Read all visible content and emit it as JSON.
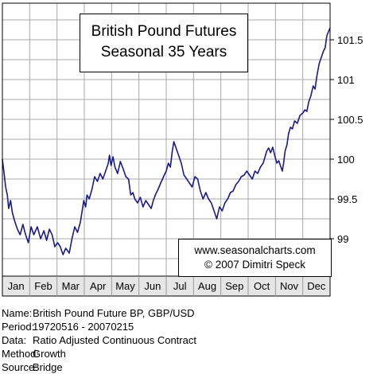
{
  "chart_data": {
    "type": "line",
    "title_lines": [
      "British Pound Futures",
      "Seasonal 35 Years"
    ],
    "credit_lines": [
      "www.seasonalcharts.com",
      "© 2007  Dimitri Speck"
    ],
    "categories": [
      "Jan",
      "Feb",
      "Mar",
      "Apr",
      "May",
      "Jun",
      "Jul",
      "Aug",
      "Sep",
      "Oct",
      "Nov",
      "Dec"
    ],
    "yticks": [
      99,
      99.5,
      100,
      100.5,
      101,
      101.5
    ],
    "ytick_labels": [
      "99",
      "99.5",
      "100",
      "100.5",
      "101",
      "101.5"
    ],
    "ylim": [
      98.6,
      101.8
    ],
    "y_axis_side": "right",
    "grid": true,
    "series": [
      {
        "color": "#1a1a8c",
        "points": [
          [
            0.0,
            100.0
          ],
          [
            0.07,
            99.8
          ],
          [
            0.12,
            99.65
          ],
          [
            0.18,
            99.55
          ],
          [
            0.23,
            99.38
          ],
          [
            0.3,
            99.48
          ],
          [
            0.37,
            99.32
          ],
          [
            0.45,
            99.22
          ],
          [
            0.55,
            99.12
          ],
          [
            0.65,
            99.05
          ],
          [
            0.75,
            99.18
          ],
          [
            0.85,
            99.05
          ],
          [
            0.95,
            98.95
          ],
          [
            1.05,
            99.15
          ],
          [
            1.15,
            99.05
          ],
          [
            1.28,
            99.15
          ],
          [
            1.4,
            99.0
          ],
          [
            1.52,
            99.1
          ],
          [
            1.62,
            98.98
          ],
          [
            1.72,
            99.12
          ],
          [
            1.82,
            99.05
          ],
          [
            1.92,
            98.9
          ],
          [
            2.02,
            98.95
          ],
          [
            2.12,
            98.9
          ],
          [
            2.22,
            98.8
          ],
          [
            2.32,
            98.88
          ],
          [
            2.45,
            98.82
          ],
          [
            2.55,
            99.0
          ],
          [
            2.65,
            99.15
          ],
          [
            2.75,
            99.08
          ],
          [
            2.85,
            99.2
          ],
          [
            2.92,
            99.35
          ],
          [
            2.98,
            99.48
          ],
          [
            3.05,
            99.4
          ],
          [
            3.1,
            99.55
          ],
          [
            3.18,
            99.5
          ],
          [
            3.28,
            99.62
          ],
          [
            3.38,
            99.78
          ],
          [
            3.48,
            99.72
          ],
          [
            3.58,
            99.82
          ],
          [
            3.68,
            99.75
          ],
          [
            3.78,
            99.85
          ],
          [
            3.88,
            99.95
          ],
          [
            3.92,
            100.05
          ],
          [
            3.98,
            99.92
          ],
          [
            4.05,
            100.03
          ],
          [
            4.12,
            99.9
          ],
          [
            4.22,
            99.82
          ],
          [
            4.32,
            99.97
          ],
          [
            4.42,
            99.88
          ],
          [
            4.52,
            99.78
          ],
          [
            4.62,
            99.75
          ],
          [
            4.7,
            99.55
          ],
          [
            4.78,
            99.58
          ],
          [
            4.85,
            99.5
          ],
          [
            4.95,
            99.45
          ],
          [
            5.05,
            99.52
          ],
          [
            5.15,
            99.4
          ],
          [
            5.25,
            99.48
          ],
          [
            5.35,
            99.43
          ],
          [
            5.45,
            99.38
          ],
          [
            5.52,
            99.47
          ],
          [
            5.6,
            99.55
          ],
          [
            5.7,
            99.62
          ],
          [
            5.8,
            99.7
          ],
          [
            5.9,
            99.78
          ],
          [
            6.0,
            99.85
          ],
          [
            6.08,
            99.95
          ],
          [
            6.15,
            99.9
          ],
          [
            6.22,
            100.1
          ],
          [
            6.28,
            100.22
          ],
          [
            6.35,
            100.15
          ],
          [
            6.45,
            100.05
          ],
          [
            6.55,
            99.95
          ],
          [
            6.65,
            99.8
          ],
          [
            6.75,
            99.75
          ],
          [
            6.85,
            99.7
          ],
          [
            6.95,
            99.65
          ],
          [
            7.05,
            99.78
          ],
          [
            7.15,
            99.75
          ],
          [
            7.25,
            99.6
          ],
          [
            7.35,
            99.5
          ],
          [
            7.45,
            99.58
          ],
          [
            7.55,
            99.5
          ],
          [
            7.65,
            99.45
          ],
          [
            7.75,
            99.35
          ],
          [
            7.85,
            99.25
          ],
          [
            7.95,
            99.4
          ],
          [
            8.05,
            99.35
          ],
          [
            8.15,
            99.45
          ],
          [
            8.25,
            99.5
          ],
          [
            8.35,
            99.58
          ],
          [
            8.45,
            99.6
          ],
          [
            8.55,
            99.68
          ],
          [
            8.65,
            99.72
          ],
          [
            8.75,
            99.78
          ],
          [
            8.85,
            99.8
          ],
          [
            8.95,
            99.85
          ],
          [
            9.05,
            99.8
          ],
          [
            9.15,
            99.75
          ],
          [
            9.25,
            99.85
          ],
          [
            9.35,
            99.82
          ],
          [
            9.45,
            99.9
          ],
          [
            9.55,
            99.95
          ],
          [
            9.62,
            100.03
          ],
          [
            9.68,
            100.1
          ],
          [
            9.75,
            100.14
          ],
          [
            9.82,
            100.08
          ],
          [
            9.9,
            100.15
          ],
          [
            9.97,
            100.05
          ],
          [
            10.05,
            99.95
          ],
          [
            10.12,
            99.98
          ],
          [
            10.2,
            99.9
          ],
          [
            10.25,
            99.85
          ],
          [
            10.3,
            99.95
          ],
          [
            10.35,
            100.1
          ],
          [
            10.42,
            100.18
          ],
          [
            10.48,
            100.32
          ],
          [
            10.55,
            100.4
          ],
          [
            10.62,
            100.38
          ],
          [
            10.7,
            100.48
          ],
          [
            10.8,
            100.45
          ],
          [
            10.9,
            100.55
          ],
          [
            11.0,
            100.58
          ],
          [
            11.08,
            100.62
          ],
          [
            11.15,
            100.6
          ],
          [
            11.22,
            100.72
          ],
          [
            11.3,
            100.8
          ],
          [
            11.38,
            100.92
          ],
          [
            11.45,
            100.88
          ],
          [
            11.52,
            101.05
          ],
          [
            11.6,
            101.2
          ],
          [
            11.68,
            101.28
          ],
          [
            11.75,
            101.35
          ],
          [
            11.82,
            101.4
          ],
          [
            11.88,
            101.55
          ],
          [
            11.94,
            101.6
          ],
          [
            12.0,
            101.65
          ]
        ]
      }
    ]
  },
  "meta": [
    {
      "key": "Name:",
      "value": "British Pound Future BP, GBP/USD"
    },
    {
      "key": "Period:",
      "value": "19720516 - 20070215"
    },
    {
      "key": "Data:",
      "value": "Ratio Adjusted Continuous Contract"
    },
    {
      "key": "Method:",
      "value": "Growth"
    },
    {
      "key": "Source:",
      "value": "Bridge"
    }
  ]
}
